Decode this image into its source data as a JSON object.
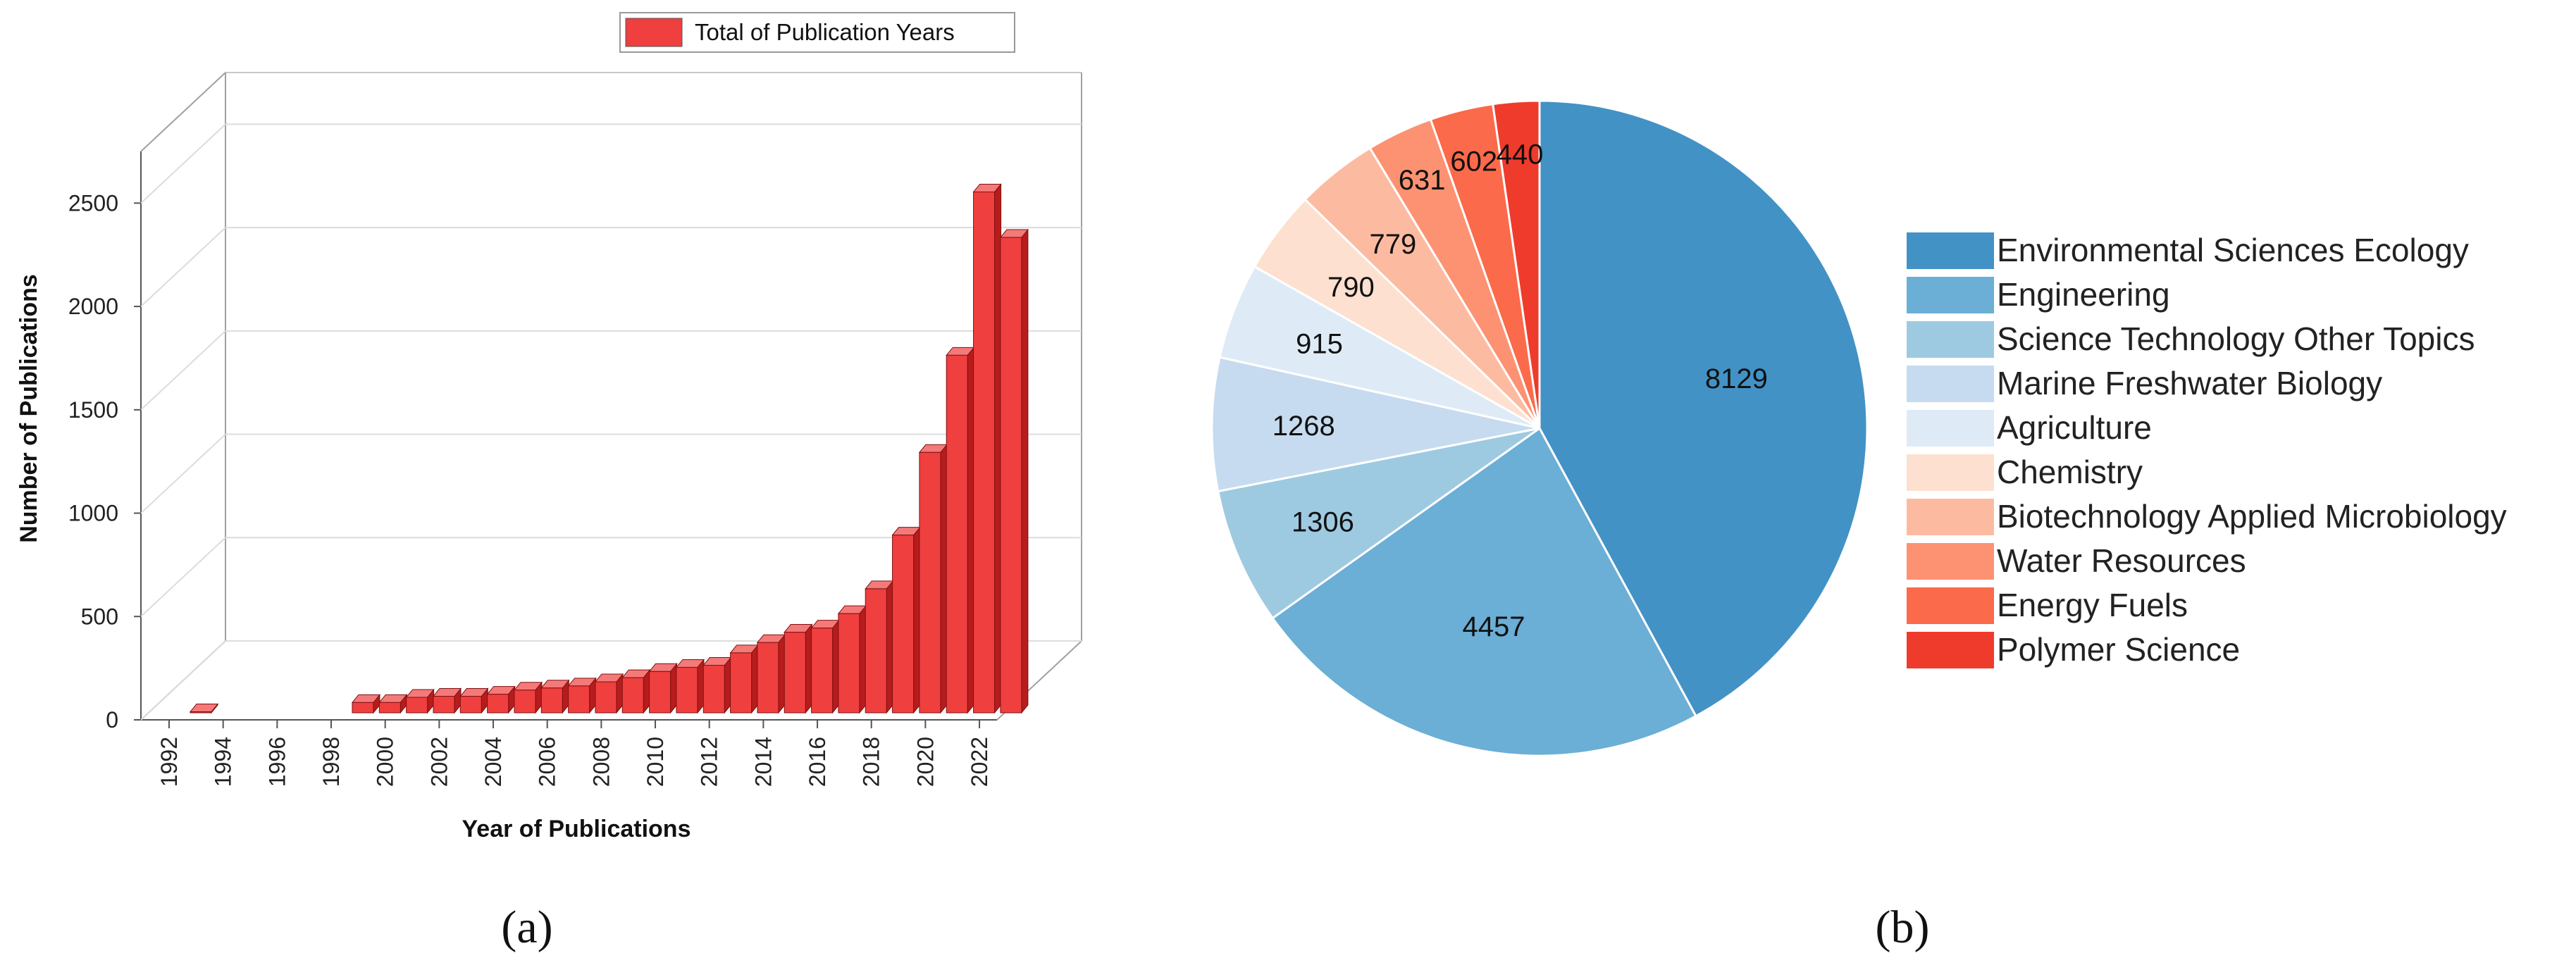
{
  "chart_data": [
    {
      "type": "bar",
      "title": "",
      "legend": "Total of Publication Years",
      "legend_color": "#ef3f3f",
      "xlabel": "Year of Publications",
      "ylabel": "Number of Publications",
      "ylim": [
        0,
        2750
      ],
      "yticks": [
        0,
        500,
        1000,
        1500,
        2000,
        2500
      ],
      "xtick_labels": [
        "1992",
        "1994",
        "1996",
        "1998",
        "2000",
        "2002",
        "2004",
        "2006",
        "2008",
        "2010",
        "2012",
        "2014",
        "2016",
        "2018",
        "2020",
        "2022"
      ],
      "categories": [
        "1993",
        "1994",
        "1995",
        "1996",
        "1997",
        "1998",
        "1999",
        "2000",
        "2001",
        "2002",
        "2003",
        "2004",
        "2005",
        "2006",
        "2007",
        "2008",
        "2009",
        "2010",
        "2011",
        "2012",
        "2013",
        "2014",
        "2015",
        "2016",
        "2017",
        "2018",
        "2019",
        "2020",
        "2021",
        "2022",
        "2023"
      ],
      "values": [
        5,
        0,
        0,
        0,
        0,
        0,
        50,
        50,
        75,
        80,
        80,
        90,
        110,
        120,
        130,
        150,
        170,
        200,
        220,
        230,
        290,
        340,
        390,
        410,
        480,
        600,
        860,
        1260,
        1730,
        2520,
        2300
      ],
      "panel_label": "(a)"
    },
    {
      "type": "pie",
      "labels": [
        "Environmental Sciences Ecology",
        "Engineering",
        "Science Technology Other Topics",
        "Marine Freshwater Biology",
        "Agriculture",
        "Chemistry",
        "Biotechnology Applied Microbiology",
        "Water Resources",
        "Energy Fuels",
        "Polymer Science"
      ],
      "values": [
        8129,
        4457,
        1306,
        1268,
        915,
        790,
        779,
        631,
        602,
        440
      ],
      "value_labels": [
        "8129",
        "4457",
        "1306",
        "1268",
        "915",
        "790",
        "779",
        "631",
        "602",
        "440"
      ],
      "colors": [
        "#4292c6",
        "#6baed6",
        "#9ecae1",
        "#c6dbef",
        "#deebf7",
        "#fde0cf",
        "#fcbba1",
        "#fc9272",
        "#fb6a4a",
        "#ef3b2c"
      ],
      "panel_label": "(b)"
    }
  ]
}
